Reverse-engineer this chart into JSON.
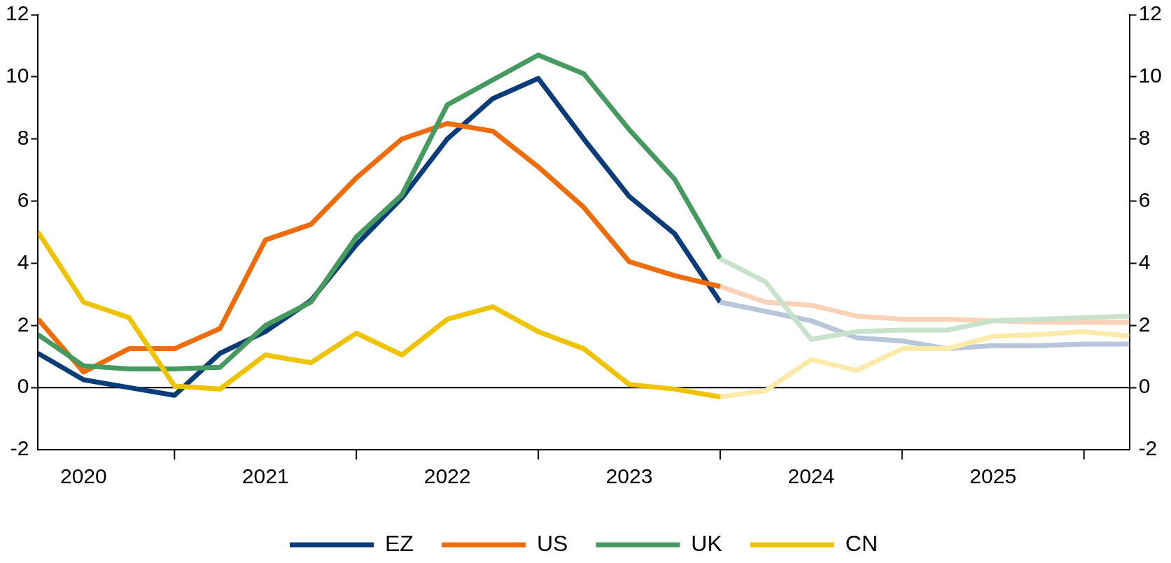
{
  "chart_data": {
    "type": "line",
    "x": [
      2020.25,
      2020.5,
      2020.75,
      2021,
      2021.25,
      2021.5,
      2021.75,
      2022,
      2022.25,
      2022.5,
      2022.75,
      2023,
      2023.25,
      2023.5,
      2023.75,
      2024,
      2024.25,
      2024.5,
      2024.75,
      2025,
      2025.25,
      2025.5,
      2025.75,
      2026,
      2026.25
    ],
    "series": [
      {
        "name": "EZ",
        "color": "#0b3c7a",
        "values": [
          1.1,
          0.25,
          0,
          -0.25,
          1.1,
          1.8,
          2.8,
          4.6,
          6.1,
          8.0,
          9.3,
          9.95,
          8.0,
          6.15,
          4.95,
          2.75,
          null,
          null,
          null,
          null,
          null,
          null,
          null,
          null,
          null
        ]
      },
      {
        "name": "US",
        "color": "#ee6c0a",
        "values": [
          2.2,
          0.5,
          1.25,
          1.25,
          1.9,
          4.75,
          5.25,
          6.75,
          8.0,
          8.5,
          8.25,
          7.1,
          5.8,
          4.05,
          3.6,
          3.25,
          null,
          null,
          null,
          null,
          null,
          null,
          null,
          null,
          null
        ]
      },
      {
        "name": "UK",
        "color": "#479a5f",
        "values": [
          1.7,
          0.7,
          0.6,
          0.6,
          0.65,
          2.0,
          2.75,
          4.85,
          6.2,
          9.1,
          9.9,
          10.7,
          10.1,
          8.3,
          6.7,
          4.15,
          null,
          null,
          null,
          null,
          null,
          null,
          null,
          null,
          null
        ]
      },
      {
        "name": "CN",
        "color": "#f0c300",
        "values": [
          5.0,
          2.75,
          2.25,
          0.05,
          -0.05,
          1.05,
          0.8,
          1.75,
          1.05,
          2.2,
          2.6,
          1.8,
          1.25,
          0.1,
          -0.05,
          -0.3,
          null,
          null,
          null,
          null,
          null,
          null,
          null,
          null,
          null
        ]
      },
      {
        "color": "#b9c5d8",
        "values": [
          null,
          null,
          null,
          null,
          null,
          null,
          null,
          null,
          null,
          null,
          null,
          null,
          null,
          null,
          null,
          2.75,
          2.45,
          2.15,
          1.6,
          1.5,
          1.25,
          1.35,
          1.35,
          1.4,
          1.4
        ]
      },
      {
        "color": "#f9d2b8",
        "values": [
          null,
          null,
          null,
          null,
          null,
          null,
          null,
          null,
          null,
          null,
          null,
          null,
          null,
          null,
          null,
          3.25,
          2.75,
          2.65,
          2.3,
          2.2,
          2.2,
          2.15,
          2.1,
          2.1,
          2.1
        ]
      },
      {
        "color": "#c8e2cc",
        "values": [
          null,
          null,
          null,
          null,
          null,
          null,
          null,
          null,
          null,
          null,
          null,
          null,
          null,
          null,
          null,
          4.15,
          3.4,
          1.55,
          1.8,
          1.85,
          1.85,
          2.15,
          2.2,
          2.25,
          2.3
        ]
      },
      {
        "color": "#fbeaa8",
        "values": [
          null,
          null,
          null,
          null,
          null,
          null,
          null,
          null,
          null,
          null,
          null,
          null,
          null,
          null,
          null,
          -0.3,
          -0.1,
          0.9,
          0.55,
          1.25,
          1.25,
          1.65,
          1.7,
          1.8,
          1.65
        ]
      }
    ],
    "xlim": [
      2020.25,
      2026.25
    ],
    "xticks": [
      {
        "value": 2020.5,
        "label": "2020"
      },
      {
        "value": 2021.5,
        "label": "2021"
      },
      {
        "value": 2022.5,
        "label": "2022"
      },
      {
        "value": 2023.5,
        "label": "2023"
      },
      {
        "value": 2024.5,
        "label": "2024"
      },
      {
        "value": 2025.5,
        "label": "2025"
      }
    ],
    "ylim": [
      -2,
      12
    ],
    "yticks": [
      -2,
      0,
      2,
      4,
      6,
      8,
      10,
      12
    ],
    "y2lim": [
      -2,
      12
    ],
    "y2ticks": [
      -2,
      0,
      2,
      4,
      6,
      8,
      10,
      12
    ],
    "ref_lines": [
      {
        "axis": "y",
        "value": 0,
        "color": "#000000"
      }
    ],
    "grid": false,
    "legend": "bottom",
    "marker": "none",
    "line_style": "solid"
  }
}
